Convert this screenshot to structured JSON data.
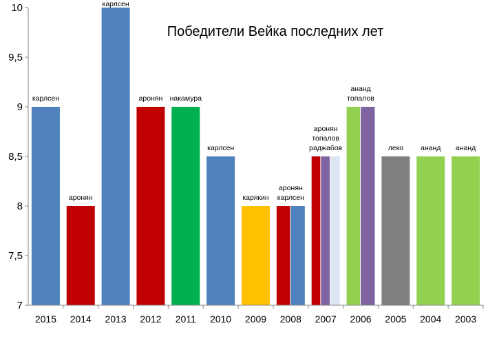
{
  "chart_data": {
    "type": "bar",
    "title": "Победители Вейка последних лет",
    "xlabel": "",
    "ylabel": "",
    "ylim": [
      7,
      10
    ],
    "yticks": [
      "7",
      "7,5",
      "8",
      "8,5",
      "9",
      "9,5",
      "10"
    ],
    "grid": false,
    "legend": "none",
    "colors": {
      "blue": "#4F81BD",
      "red": "#C00000",
      "green": "#00B050",
      "yellow": "#FFC000",
      "gray": "#7F7F7F",
      "lightgreen": "#92D050",
      "purple": "#8064A2",
      "lightblue": "#DCE6F2"
    },
    "categories": [
      {
        "year": "2015",
        "labels": [
          "карлсен"
        ],
        "bars": [
          {
            "value": 9.0,
            "color": "blue"
          }
        ]
      },
      {
        "year": "2014",
        "labels": [
          "аронян"
        ],
        "bars": [
          {
            "value": 8.0,
            "color": "red"
          }
        ]
      },
      {
        "year": "2013",
        "labels": [
          "карлсен"
        ],
        "bars": [
          {
            "value": 10.0,
            "color": "blue"
          }
        ]
      },
      {
        "year": "2012",
        "labels": [
          "аронян"
        ],
        "bars": [
          {
            "value": 9.0,
            "color": "red"
          }
        ]
      },
      {
        "year": "2011",
        "labels": [
          "накамура"
        ],
        "bars": [
          {
            "value": 9.0,
            "color": "green"
          }
        ]
      },
      {
        "year": "2010",
        "labels": [
          "карлсен"
        ],
        "bars": [
          {
            "value": 8.5,
            "color": "blue"
          }
        ]
      },
      {
        "year": "2009",
        "labels": [
          "карякин"
        ],
        "bars": [
          {
            "value": 8.0,
            "color": "yellow"
          }
        ]
      },
      {
        "year": "2008",
        "labels": [
          "аронян",
          "карлсен"
        ],
        "bars": [
          {
            "value": 8.0,
            "color": "red"
          },
          {
            "value": 8.0,
            "color": "blue"
          }
        ]
      },
      {
        "year": "2007",
        "labels": [
          "аронян",
          "топалов",
          "раджабов"
        ],
        "bars": [
          {
            "value": 8.5,
            "color": "red"
          },
          {
            "value": 8.5,
            "color": "purple"
          },
          {
            "value": 8.5,
            "color": "lightblue"
          }
        ]
      },
      {
        "year": "2006",
        "labels": [
          "ананд",
          "топалов"
        ],
        "bars": [
          {
            "value": 9.0,
            "color": "lightgreen"
          },
          {
            "value": 9.0,
            "color": "purple"
          }
        ]
      },
      {
        "year": "2005",
        "labels": [
          "леко"
        ],
        "bars": [
          {
            "value": 8.5,
            "color": "gray"
          }
        ]
      },
      {
        "year": "2004",
        "labels": [
          "ананд"
        ],
        "bars": [
          {
            "value": 8.5,
            "color": "lightgreen"
          }
        ]
      },
      {
        "year": "2003",
        "labels": [
          "ананд"
        ],
        "bars": [
          {
            "value": 8.5,
            "color": "lightgreen"
          }
        ]
      }
    ]
  }
}
